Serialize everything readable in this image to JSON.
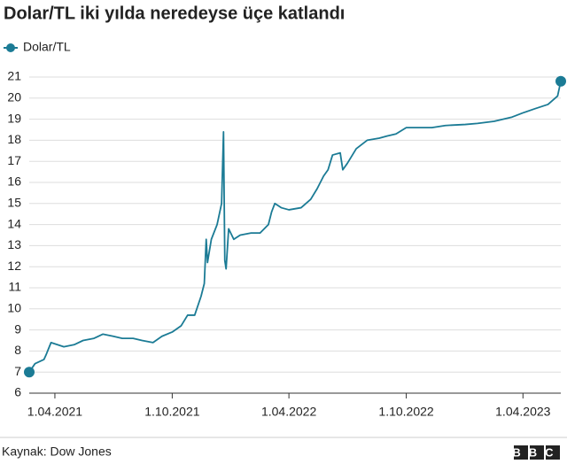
{
  "chart_data": {
    "type": "line",
    "title": "Dolar/TL iki yılda neredeyse üçe katlandı",
    "x": [
      "2021-02-20",
      "2021-03-01",
      "2021-03-15",
      "2021-03-18",
      "2021-03-22",
      "2021-03-26",
      "2021-04-15",
      "2021-05-01",
      "2021-05-15",
      "2021-06-01",
      "2021-06-15",
      "2021-07-01",
      "2021-07-15",
      "2021-08-01",
      "2021-08-15",
      "2021-09-01",
      "2021-09-15",
      "2021-10-01",
      "2021-10-15",
      "2021-10-25",
      "2021-11-05",
      "2021-11-15",
      "2021-11-20",
      "2021-11-23",
      "2021-11-25",
      "2021-12-01",
      "2021-12-10",
      "2021-12-17",
      "2021-12-20",
      "2021-12-22",
      "2021-12-24",
      "2021-12-28",
      "2022-01-05",
      "2022-01-15",
      "2022-02-01",
      "2022-02-15",
      "2022-02-28",
      "2022-03-05",
      "2022-03-10",
      "2022-03-20",
      "2022-04-01",
      "2022-04-20",
      "2022-05-05",
      "2022-05-15",
      "2022-05-25",
      "2022-06-01",
      "2022-06-08",
      "2022-06-20",
      "2022-06-24",
      "2022-07-01",
      "2022-07-15",
      "2022-08-01",
      "2022-08-20",
      "2022-09-01",
      "2022-09-15",
      "2022-10-01",
      "2022-10-20",
      "2022-11-10",
      "2022-12-01",
      "2023-01-01",
      "2023-01-20",
      "2023-02-15",
      "2023-03-15",
      "2023-04-01",
      "2023-04-20",
      "2023-05-10",
      "2023-05-25",
      "2023-05-30"
    ],
    "series": [
      {
        "name": "Dolar/TL",
        "color": "#1b7b95",
        "values": [
          7.0,
          7.4,
          7.6,
          7.8,
          8.1,
          8.4,
          8.2,
          8.3,
          8.5,
          8.6,
          8.8,
          8.7,
          8.6,
          8.6,
          8.5,
          8.4,
          8.7,
          8.9,
          9.2,
          9.7,
          9.7,
          10.6,
          11.2,
          13.3,
          12.2,
          13.3,
          14.0,
          15.0,
          18.4,
          12.3,
          11.9,
          13.8,
          13.3,
          13.5,
          13.6,
          13.6,
          14.0,
          14.6,
          15.0,
          14.8,
          14.7,
          14.8,
          15.2,
          15.7,
          16.3,
          16.6,
          17.3,
          17.4,
          16.6,
          16.9,
          17.6,
          18.0,
          18.1,
          18.2,
          18.3,
          18.6,
          18.6,
          18.6,
          18.7,
          18.75,
          18.8,
          18.9,
          19.1,
          19.3,
          19.5,
          19.7,
          20.1,
          20.8
        ]
      }
    ],
    "xlim": [
      "2021-02-20",
      "2023-05-30"
    ],
    "xticks": [
      {
        "value": "2021-04-01",
        "label": "1.04.2021"
      },
      {
        "value": "2021-10-01",
        "label": "1.10.2021"
      },
      {
        "value": "2022-04-01",
        "label": "1.04.2022"
      },
      {
        "value": "2022-10-01",
        "label": "1.10.2022"
      },
      {
        "value": "2023-04-01",
        "label": "1.04.2023"
      }
    ],
    "ylim": [
      6,
      21
    ],
    "yticks": [
      6,
      7,
      8,
      9,
      10,
      11,
      12,
      13,
      14,
      15,
      16,
      17,
      18,
      19,
      20,
      21
    ],
    "grid": true,
    "legend": "top-left",
    "source": "Kaynak: Dow Jones",
    "logo": "BBC"
  }
}
